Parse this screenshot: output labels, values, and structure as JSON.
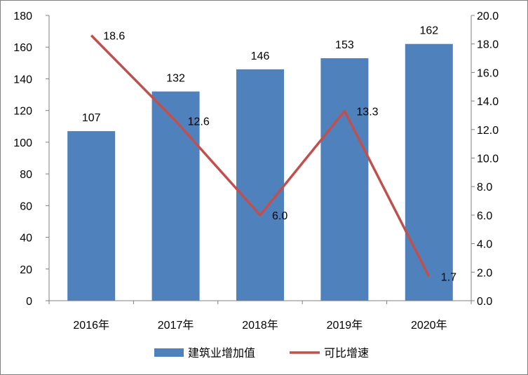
{
  "chart_data": {
    "type": "bar",
    "categories": [
      "2016年",
      "2017年",
      "2018年",
      "2019年",
      "2020年"
    ],
    "series": [
      {
        "name": "建筑业增加值",
        "type": "bar",
        "axis": "left",
        "values": [
          107,
          132,
          146,
          153,
          162
        ],
        "labels": [
          "107",
          "132",
          "146",
          "153",
          "162"
        ],
        "color": "#4f81bd"
      },
      {
        "name": "可比增速",
        "type": "line",
        "axis": "right",
        "values": [
          18.6,
          12.6,
          6.0,
          13.3,
          1.7
        ],
        "labels": [
          "18.6",
          "12.6",
          "6.0",
          "13.3",
          "1.7"
        ],
        "color": "#c0504d"
      }
    ],
    "y_left": {
      "ylim": [
        0,
        180
      ],
      "ticks": [
        "0",
        "20",
        "40",
        "60",
        "80",
        "100",
        "120",
        "140",
        "160",
        "180"
      ]
    },
    "y_right": {
      "ylim": [
        0,
        20
      ],
      "ticks": [
        "0.0",
        "2.0",
        "4.0",
        "6.0",
        "8.0",
        "10.0",
        "12.0",
        "14.0",
        "16.0",
        "18.0",
        "20.0"
      ]
    },
    "title": "",
    "xlabel": "",
    "ylabel": "",
    "grid": false,
    "legend_position": "bottom"
  }
}
